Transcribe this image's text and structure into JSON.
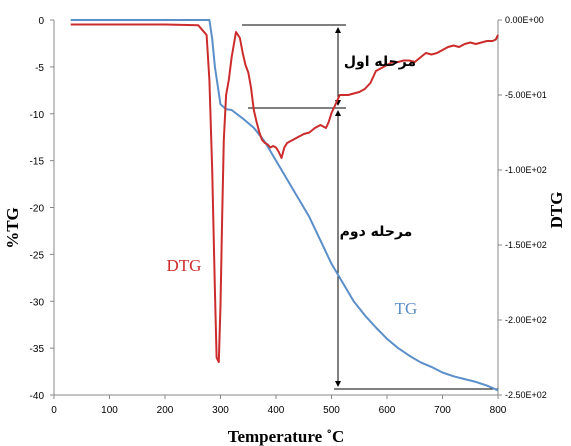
{
  "chart_data": {
    "type": "line",
    "xlabel": "Temperature ˚C",
    "ylabel_left": "%TG",
    "ylabel_right": "DTG",
    "xlim": [
      0,
      800
    ],
    "ylim_left": [
      -40,
      0
    ],
    "ylim_right": [
      -250,
      0
    ],
    "x_ticks": [
      "0",
      "100",
      "200",
      "300",
      "400",
      "500",
      "600",
      "700",
      "800"
    ],
    "y_left_ticks": [
      "0",
      "-5",
      "-10",
      "-15",
      "-20",
      "-25",
      "-30",
      "-35",
      "-40"
    ],
    "y_right_ticks": [
      "0.00E+00",
      "-5.00E+01",
      "-1.00E+02",
      "-1.50E+02",
      "-2.00E+02",
      "-2.50E+02"
    ],
    "grid": false,
    "series": [
      {
        "name": "TG",
        "axis": "left",
        "color": "#5b8fc9",
        "x": [
          30,
          100,
          200,
          270,
          280,
          285,
          290,
          300,
          310,
          320,
          340,
          360,
          380,
          400,
          420,
          440,
          460,
          480,
          500,
          520,
          540,
          560,
          580,
          600,
          620,
          640,
          660,
          680,
          700,
          720,
          740,
          760,
          780,
          800
        ],
        "y": [
          0,
          0,
          0,
          0,
          0,
          -2,
          -5,
          -9,
          -9.5,
          -9.6,
          -10.5,
          -11.5,
          -13,
          -15,
          -17,
          -19,
          -21,
          -23.5,
          -26,
          -28,
          -30,
          -31.5,
          -32.8,
          -34,
          -35,
          -35.8,
          -36.5,
          -37,
          -37.6,
          -38,
          -38.3,
          -38.6,
          -39,
          -39.5
        ]
      },
      {
        "name": "DTG",
        "axis": "right",
        "color": "#cc2c2c",
        "x": [
          30,
          100,
          200,
          260,
          275,
          280,
          285,
          290,
          293,
          297,
          300,
          303,
          306,
          310,
          315,
          320,
          328,
          335,
          340,
          345,
          350,
          355,
          360,
          365,
          370,
          375,
          380,
          385,
          390,
          395,
          400,
          405,
          410,
          415,
          420,
          430,
          440,
          450,
          460,
          470,
          480,
          490,
          495,
          500,
          505,
          510,
          515,
          520,
          530,
          540,
          550,
          560,
          570,
          580,
          590,
          600,
          610,
          620,
          630,
          640,
          650,
          660,
          670,
          680,
          690,
          700,
          710,
          720,
          730,
          740,
          750,
          760,
          770,
          780,
          790,
          796,
          800
        ],
        "y": [
          -3,
          -3,
          -3,
          -3.5,
          -10,
          -40,
          -100,
          -180,
          -225,
          -228,
          -190,
          -130,
          -80,
          -50,
          -40,
          -25,
          -8,
          -12,
          -22,
          -30,
          -35,
          -45,
          -60,
          -68,
          -75,
          -80,
          -82,
          -83,
          -85,
          -84,
          -85,
          -88,
          -92,
          -85,
          -82,
          -80,
          -78,
          -76,
          -75,
          -72,
          -70,
          -72,
          -68,
          -62,
          -58,
          -54,
          -50,
          -50,
          -50,
          -49,
          -48,
          -46,
          -42,
          -34,
          -32,
          -30,
          -28,
          -28,
          -27,
          -27,
          -28,
          -25,
          -22,
          -23,
          -22,
          -20,
          -18,
          -17,
          -18,
          -16,
          -15,
          -16,
          -15,
          -14,
          -14,
          -13,
          -10
        ]
      }
    ],
    "annotations": {
      "series_label_dtg": "DTG",
      "series_label_tg": "TG",
      "stage1": "مرحله اول",
      "stage2": "مرحله دوم"
    }
  }
}
